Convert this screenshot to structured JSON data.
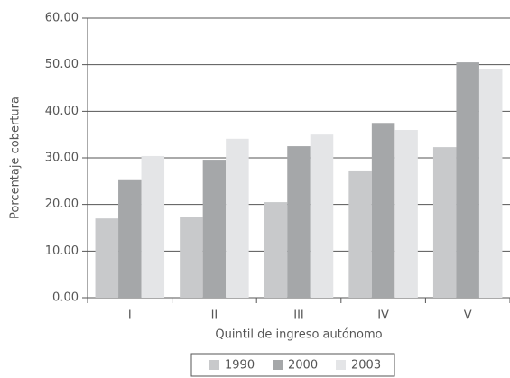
{
  "chart_data": {
    "type": "bar",
    "categories": [
      "I",
      "II",
      "III",
      "IV",
      "V"
    ],
    "series": [
      {
        "name": "1990",
        "color": "#c8c9cb",
        "values": [
          17.0,
          17.4,
          20.5,
          27.3,
          32.3
        ]
      },
      {
        "name": "2000",
        "color": "#a5a7a9",
        "values": [
          25.4,
          29.6,
          32.5,
          37.5,
          50.5
        ]
      },
      {
        "name": "2003",
        "color": "#e4e5e7",
        "values": [
          30.4,
          34.1,
          35.0,
          36.0,
          49.0
        ]
      }
    ],
    "ylabel": "Porcentaje cobertura",
    "xlabel": "Quintil de ingreso autónomo",
    "ylim": [
      0,
      60
    ],
    "yticks": [
      {
        "value": 0,
        "label": "0.00"
      },
      {
        "value": 10,
        "label": "10.00"
      },
      {
        "value": 20,
        "label": "20.00"
      },
      {
        "value": 30,
        "label": "30.00"
      },
      {
        "value": 40,
        "label": "40.00"
      },
      {
        "value": 50,
        "label": "50.00"
      },
      {
        "value": 60,
        "label": "60.00"
      }
    ],
    "grid": true,
    "legend": "bottom"
  }
}
